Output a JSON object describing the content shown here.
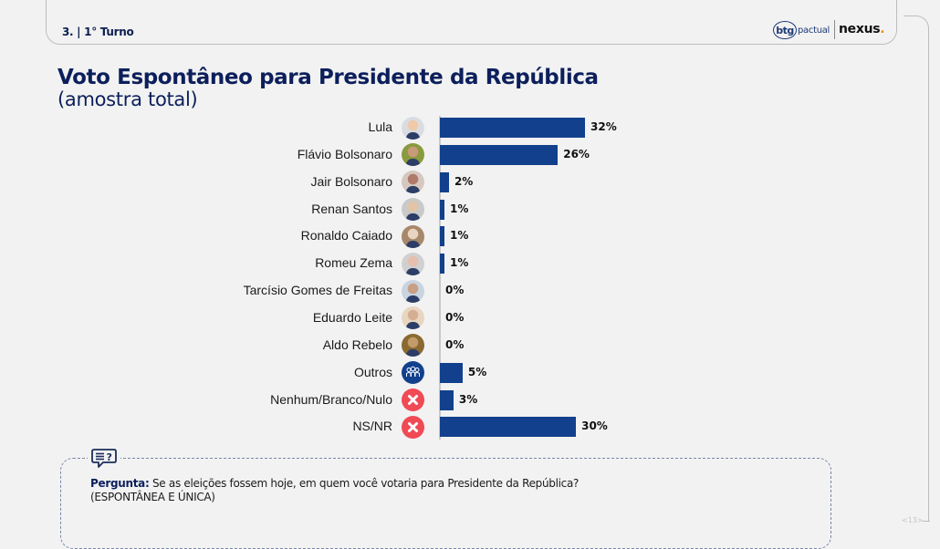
{
  "header": {
    "section": "3. | 1° Turno",
    "logo_btg": "btg",
    "logo_pactual": "pactual",
    "logo_nexus": "nexus",
    "logo_nexus_dot": "."
  },
  "title": "Voto Espontâneo para Presidente da República",
  "subtitle": "(amostra total)",
  "chart_data": {
    "type": "bar",
    "orientation": "horizontal",
    "title": "Voto Espontâneo para Presidente da República",
    "subtitle": "(amostra total)",
    "unit": "%",
    "xlim": [
      0,
      35
    ],
    "bar_color": "#12408c",
    "categories": [
      "Lula",
      "Flávio Bolsonaro",
      "Jair Bolsonaro",
      "Renan Santos",
      "Ronaldo Caiado",
      "Romeu Zema",
      "Tarcísio Gomes de Freitas",
      "Eduardo Leite",
      "Aldo Rebelo",
      "Outros",
      "Nenhum/Branco/Nulo",
      "NS/NR"
    ],
    "values": [
      32,
      26,
      2,
      1,
      1,
      1,
      0,
      0,
      0,
      5,
      3,
      30
    ],
    "labels": [
      "32%",
      "26%",
      "2%",
      "1%",
      "1%",
      "1%",
      "0%",
      "0%",
      "0%",
      "5%",
      "3%",
      "30%"
    ],
    "icons": [
      "photo",
      "photo",
      "photo",
      "photo",
      "photo",
      "photo",
      "photo",
      "photo",
      "photo",
      "group-icon",
      "x-icon",
      "x-icon"
    ]
  },
  "note": {
    "label": "Pergunta:",
    "question": " Se as eleições fossem hoje, em quem você votaria para Presidente da República?",
    "qualifier": "(ESPONTÂNEA E ÚNICA)"
  },
  "page_number": "<13>",
  "colors": {
    "title": "#0c1f5c",
    "bar": "#12408c",
    "x_icon_bg": "#f04a55",
    "group_icon_bg": "#12408c",
    "nexus_dot": "#f28c1e"
  }
}
